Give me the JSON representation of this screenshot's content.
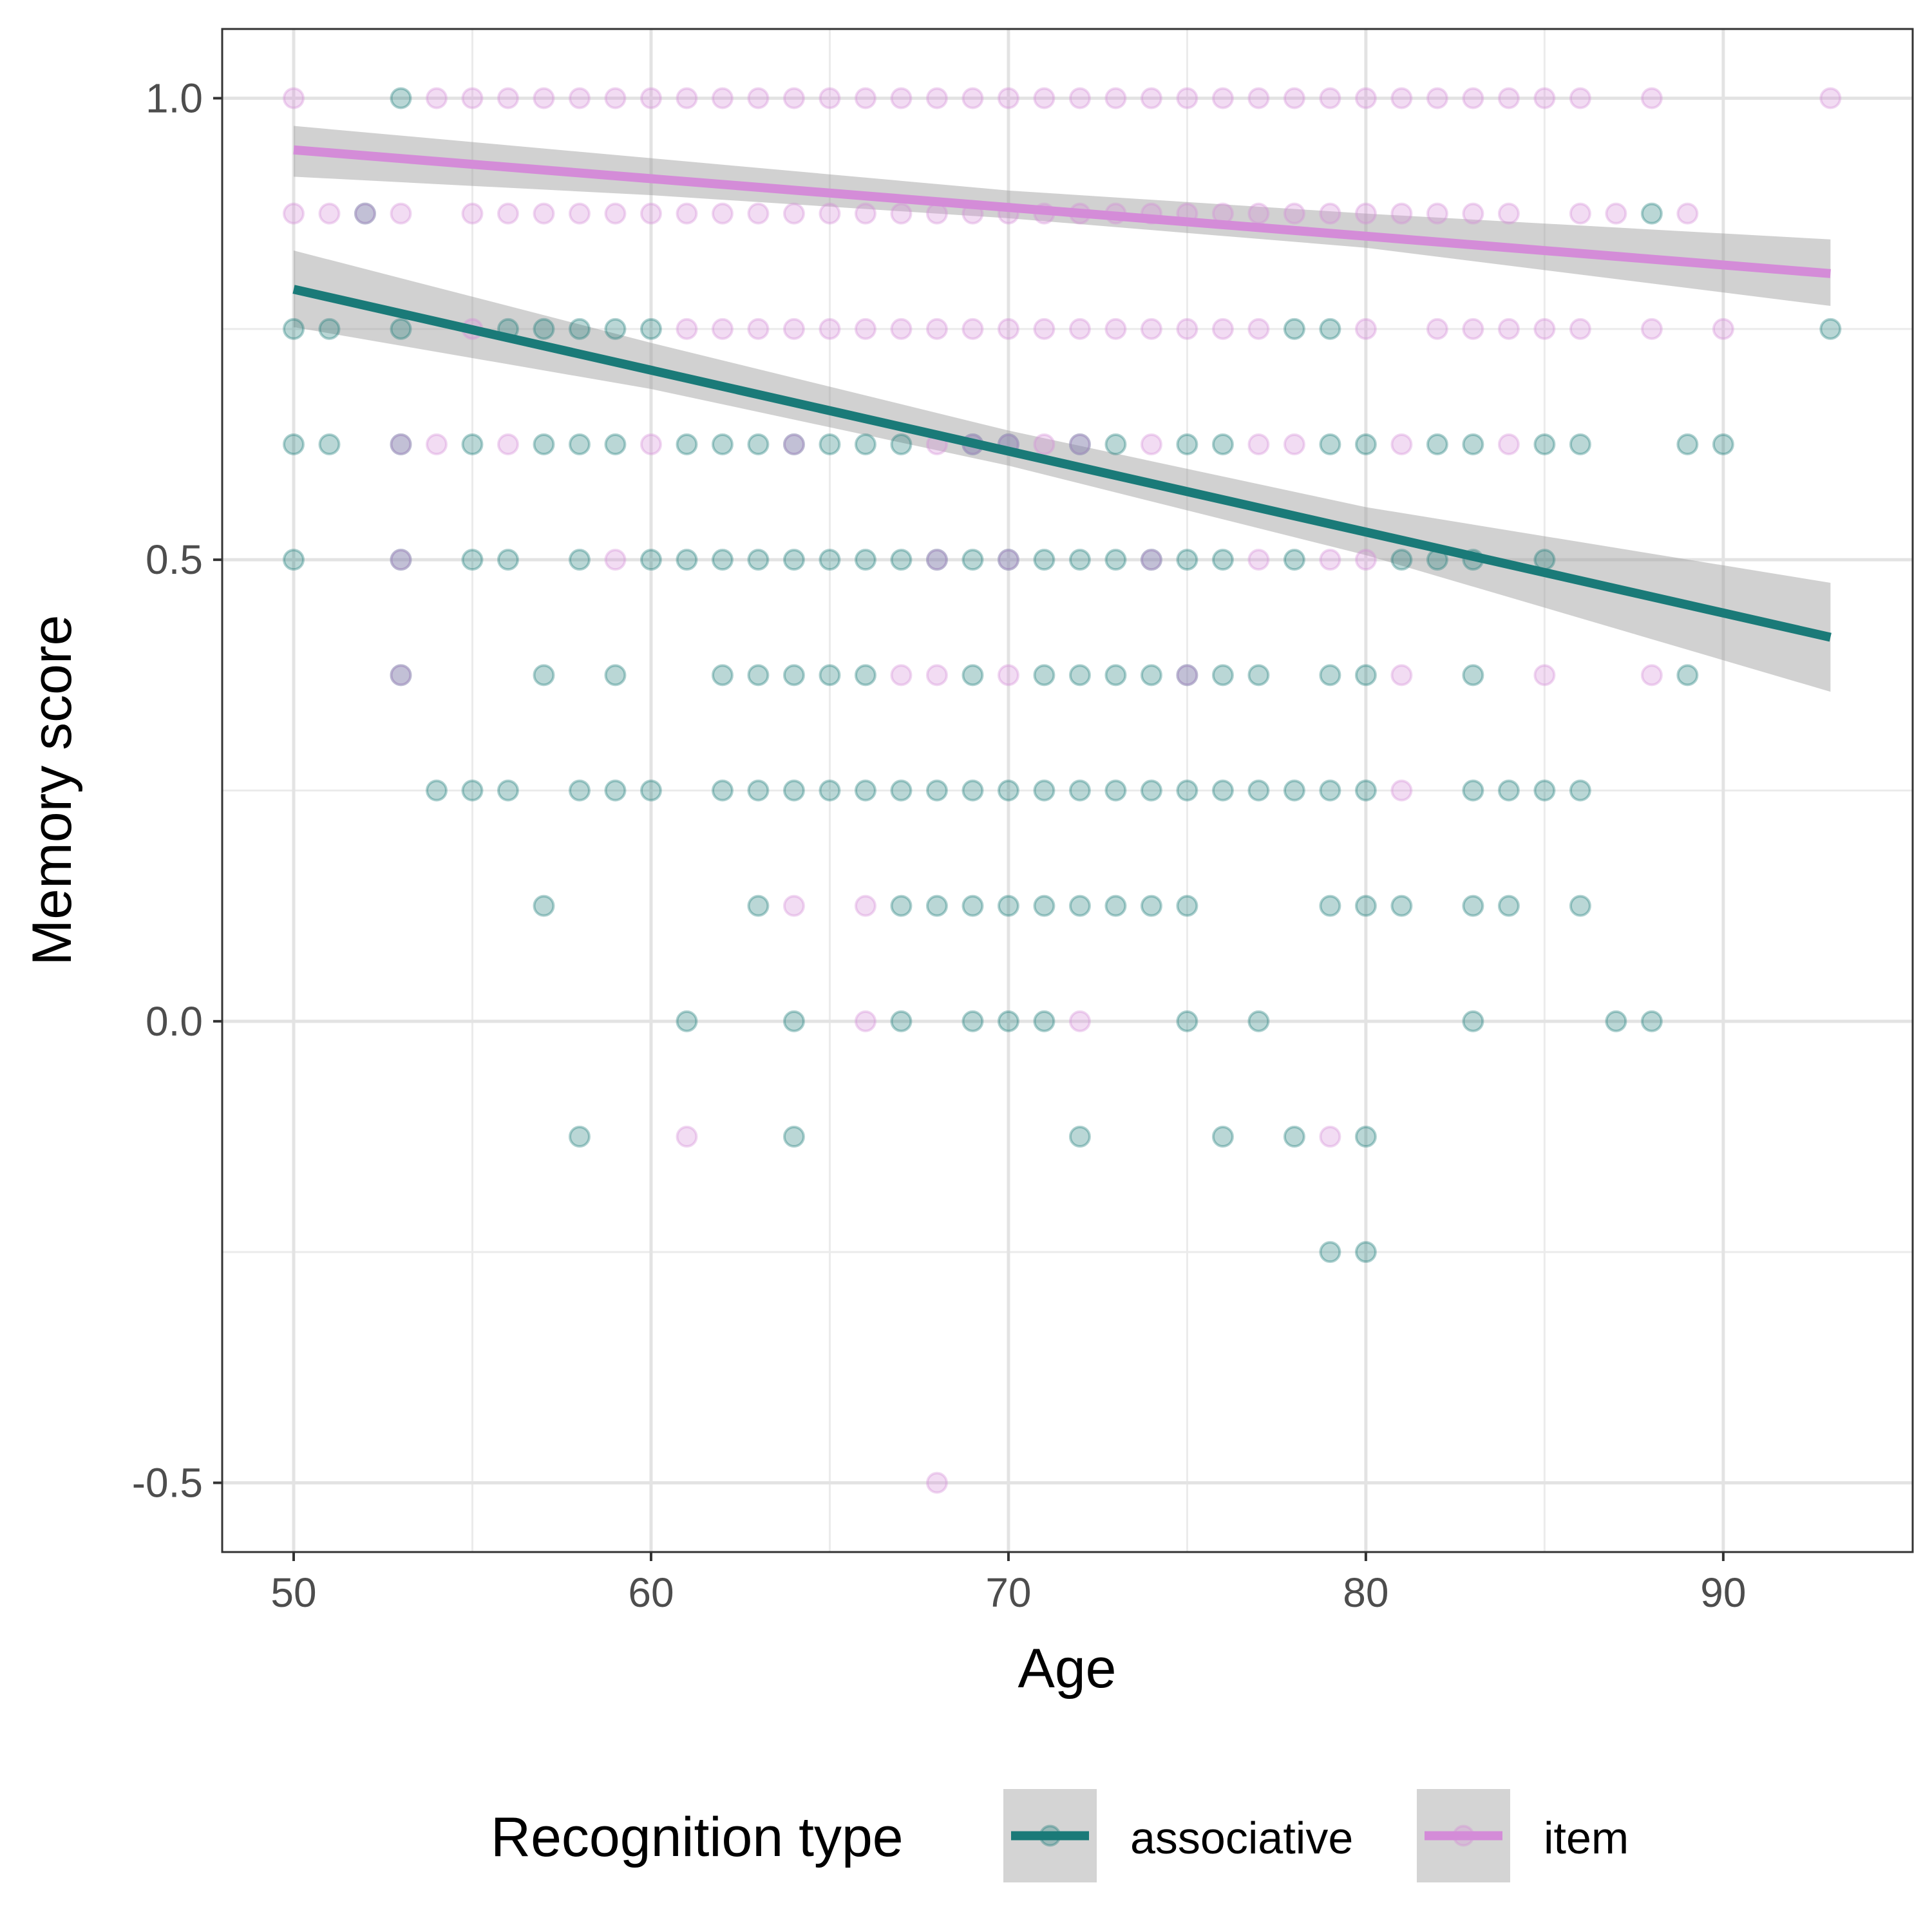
{
  "chart_data": {
    "type": "scatter",
    "title": "",
    "xlabel": "Age",
    "ylabel": "Memory score",
    "xlim": [
      48,
      95.3
    ],
    "ylim": [
      -0.575,
      1.075
    ],
    "x_major_ticks": [
      50,
      60,
      70,
      80,
      90
    ],
    "x_tick_labels": [
      "50",
      "60",
      "70",
      "80",
      "90"
    ],
    "x_minor_ticks": [
      55,
      65,
      75,
      85
    ],
    "y_major_ticks": [
      -0.5,
      0.0,
      0.5,
      1.0
    ],
    "y_tick_labels": [
      "-0.5",
      "0.0",
      "0.5",
      "1.0"
    ],
    "y_minor_ticks": [
      -0.25,
      0.25,
      0.75
    ],
    "grid": true,
    "legend": {
      "title": "Recognition type",
      "position": "bottom",
      "entries": [
        "associative",
        "item"
      ]
    },
    "series": [
      {
        "name": "associative",
        "color": "#1a7a78",
        "point_alpha": 0.3,
        "regression": {
          "x": [
            50,
            93
          ],
          "y": [
            0.793,
            0.416
          ]
        },
        "ci_upper": [
          [
            50,
            0.835
          ],
          [
            60,
            0.735
          ],
          [
            70,
            0.64
          ],
          [
            80,
            0.557
          ],
          [
            93,
            0.475
          ]
        ],
        "ci_lower": [
          [
            50,
            0.752
          ],
          [
            60,
            0.685
          ],
          [
            70,
            0.602
          ],
          [
            80,
            0.505
          ],
          [
            93,
            0.357
          ]
        ],
        "points": [
          [
            50,
            0.75
          ],
          [
            50,
            0.625
          ],
          [
            50,
            0.5
          ],
          [
            51,
            0.75
          ],
          [
            51,
            0.625
          ],
          [
            52,
            0.875
          ],
          [
            53,
            1.0
          ],
          [
            53,
            0.75
          ],
          [
            53,
            0.625
          ],
          [
            53,
            0.5
          ],
          [
            53,
            0.375
          ],
          [
            54,
            0.25
          ],
          [
            55,
            0.625
          ],
          [
            55,
            0.5
          ],
          [
            55,
            0.25
          ],
          [
            56,
            0.75
          ],
          [
            56,
            0.5
          ],
          [
            56,
            0.25
          ],
          [
            57,
            0.75
          ],
          [
            57,
            0.625
          ],
          [
            57,
            0.375
          ],
          [
            57,
            0.125
          ],
          [
            58,
            0.75
          ],
          [
            58,
            0.625
          ],
          [
            58,
            0.5
          ],
          [
            58,
            0.25
          ],
          [
            58,
            -0.125
          ],
          [
            59,
            0.75
          ],
          [
            59,
            0.625
          ],
          [
            59,
            0.375
          ],
          [
            59,
            0.25
          ],
          [
            60,
            0.75
          ],
          [
            60,
            0.5
          ],
          [
            60,
            0.25
          ],
          [
            61,
            0.625
          ],
          [
            61,
            0.5
          ],
          [
            61,
            0.0
          ],
          [
            62,
            0.625
          ],
          [
            62,
            0.5
          ],
          [
            62,
            0.375
          ],
          [
            62,
            0.25
          ],
          [
            63,
            0.625
          ],
          [
            63,
            0.5
          ],
          [
            63,
            0.375
          ],
          [
            63,
            0.25
          ],
          [
            63,
            0.125
          ],
          [
            64,
            0.625
          ],
          [
            64,
            0.5
          ],
          [
            64,
            0.375
          ],
          [
            64,
            0.25
          ],
          [
            64,
            0.0
          ],
          [
            64,
            -0.125
          ],
          [
            65,
            0.625
          ],
          [
            65,
            0.5
          ],
          [
            65,
            0.375
          ],
          [
            65,
            0.25
          ],
          [
            66,
            0.625
          ],
          [
            66,
            0.5
          ],
          [
            66,
            0.375
          ],
          [
            66,
            0.25
          ],
          [
            67,
            0.625
          ],
          [
            67,
            0.5
          ],
          [
            67,
            0.25
          ],
          [
            67,
            0.125
          ],
          [
            67,
            0.0
          ],
          [
            68,
            0.5
          ],
          [
            68,
            0.25
          ],
          [
            68,
            0.125
          ],
          [
            69,
            0.625
          ],
          [
            69,
            0.5
          ],
          [
            69,
            0.375
          ],
          [
            69,
            0.25
          ],
          [
            69,
            0.125
          ],
          [
            69,
            0.0
          ],
          [
            70,
            0.625
          ],
          [
            70,
            0.5
          ],
          [
            70,
            0.25
          ],
          [
            70,
            0.125
          ],
          [
            70,
            0.0
          ],
          [
            71,
            0.5
          ],
          [
            71,
            0.375
          ],
          [
            71,
            0.25
          ],
          [
            71,
            0.125
          ],
          [
            71,
            0.0
          ],
          [
            72,
            0.625
          ],
          [
            72,
            0.5
          ],
          [
            72,
            0.375
          ],
          [
            72,
            0.25
          ],
          [
            72,
            0.125
          ],
          [
            72,
            -0.125
          ],
          [
            73,
            0.625
          ],
          [
            73,
            0.5
          ],
          [
            73,
            0.375
          ],
          [
            73,
            0.25
          ],
          [
            73,
            0.125
          ],
          [
            74,
            0.5
          ],
          [
            74,
            0.375
          ],
          [
            74,
            0.25
          ],
          [
            74,
            0.125
          ],
          [
            75,
            0.625
          ],
          [
            75,
            0.5
          ],
          [
            75,
            0.375
          ],
          [
            75,
            0.25
          ],
          [
            75,
            0.125
          ],
          [
            75,
            0.0
          ],
          [
            76,
            0.625
          ],
          [
            76,
            0.5
          ],
          [
            76,
            0.375
          ],
          [
            76,
            0.25
          ],
          [
            76,
            -0.125
          ],
          [
            77,
            0.375
          ],
          [
            77,
            0.25
          ],
          [
            77,
            0.0
          ],
          [
            78,
            0.75
          ],
          [
            78,
            0.5
          ],
          [
            78,
            0.25
          ],
          [
            78,
            -0.125
          ],
          [
            79,
            0.75
          ],
          [
            79,
            0.625
          ],
          [
            79,
            0.375
          ],
          [
            79,
            0.25
          ],
          [
            79,
            0.125
          ],
          [
            79,
            -0.25
          ],
          [
            80,
            0.625
          ],
          [
            80,
            0.375
          ],
          [
            80,
            0.25
          ],
          [
            80,
            0.125
          ],
          [
            80,
            -0.125
          ],
          [
            80,
            -0.25
          ],
          [
            81,
            0.5
          ],
          [
            81,
            0.125
          ],
          [
            82,
            0.625
          ],
          [
            82,
            0.5
          ],
          [
            83,
            0.625
          ],
          [
            83,
            0.5
          ],
          [
            83,
            0.375
          ],
          [
            83,
            0.25
          ],
          [
            83,
            0.125
          ],
          [
            83,
            0.0
          ],
          [
            84,
            0.25
          ],
          [
            84,
            0.125
          ],
          [
            85,
            0.625
          ],
          [
            85,
            0.5
          ],
          [
            85,
            0.25
          ],
          [
            86,
            0.625
          ],
          [
            86,
            0.25
          ],
          [
            86,
            0.125
          ],
          [
            87,
            0.0
          ],
          [
            88,
            0.875
          ],
          [
            88,
            0.0
          ],
          [
            89,
            0.625
          ],
          [
            89,
            0.375
          ],
          [
            90,
            0.625
          ],
          [
            93,
            0.75
          ]
        ]
      },
      {
        "name": "item",
        "color": "#d48cd8",
        "point_alpha": 0.3,
        "regression": {
          "x": [
            50,
            93
          ],
          "y": [
            0.944,
            0.81
          ]
        },
        "ci_upper": [
          [
            50,
            0.97
          ],
          [
            60,
            0.935
          ],
          [
            70,
            0.9
          ],
          [
            80,
            0.875
          ],
          [
            93,
            0.847
          ]
        ],
        "ci_lower": [
          [
            50,
            0.915
          ],
          [
            60,
            0.895
          ],
          [
            70,
            0.87
          ],
          [
            80,
            0.838
          ],
          [
            93,
            0.775
          ]
        ],
        "points": [
          [
            50,
            1.0
          ],
          [
            50,
            0.875
          ],
          [
            51,
            0.875
          ],
          [
            52,
            0.875
          ],
          [
            53,
            0.875
          ],
          [
            53,
            0.625
          ],
          [
            53,
            0.5
          ],
          [
            53,
            0.375
          ],
          [
            54,
            1.0
          ],
          [
            54,
            0.625
          ],
          [
            55,
            1.0
          ],
          [
            55,
            0.875
          ],
          [
            55,
            0.75
          ],
          [
            56,
            1.0
          ],
          [
            56,
            0.875
          ],
          [
            56,
            0.625
          ],
          [
            57,
            1.0
          ],
          [
            57,
            0.875
          ],
          [
            58,
            1.0
          ],
          [
            58,
            0.875
          ],
          [
            59,
            1.0
          ],
          [
            59,
            0.875
          ],
          [
            59,
            0.5
          ],
          [
            60,
            1.0
          ],
          [
            60,
            0.875
          ],
          [
            60,
            0.625
          ],
          [
            61,
            1.0
          ],
          [
            61,
            0.875
          ],
          [
            61,
            0.75
          ],
          [
            61,
            -0.125
          ],
          [
            62,
            1.0
          ],
          [
            62,
            0.875
          ],
          [
            62,
            0.75
          ],
          [
            63,
            1.0
          ],
          [
            63,
            0.875
          ],
          [
            63,
            0.75
          ],
          [
            64,
            1.0
          ],
          [
            64,
            0.875
          ],
          [
            64,
            0.75
          ],
          [
            64,
            0.625
          ],
          [
            64,
            0.125
          ],
          [
            65,
            1.0
          ],
          [
            65,
            0.875
          ],
          [
            65,
            0.75
          ],
          [
            66,
            1.0
          ],
          [
            66,
            0.875
          ],
          [
            66,
            0.75
          ],
          [
            66,
            0.125
          ],
          [
            66,
            0.0
          ],
          [
            67,
            1.0
          ],
          [
            67,
            0.875
          ],
          [
            67,
            0.75
          ],
          [
            67,
            0.375
          ],
          [
            68,
            1.0
          ],
          [
            68,
            0.875
          ],
          [
            68,
            0.75
          ],
          [
            68,
            0.625
          ],
          [
            68,
            0.5
          ],
          [
            68,
            0.375
          ],
          [
            68,
            -0.5
          ],
          [
            69,
            1.0
          ],
          [
            69,
            0.875
          ],
          [
            69,
            0.75
          ],
          [
            69,
            0.625
          ],
          [
            70,
            1.0
          ],
          [
            70,
            0.875
          ],
          [
            70,
            0.75
          ],
          [
            70,
            0.625
          ],
          [
            70,
            0.5
          ],
          [
            70,
            0.375
          ],
          [
            71,
            1.0
          ],
          [
            71,
            0.875
          ],
          [
            71,
            0.75
          ],
          [
            71,
            0.625
          ],
          [
            72,
            1.0
          ],
          [
            72,
            0.875
          ],
          [
            72,
            0.75
          ],
          [
            72,
            0.625
          ],
          [
            72,
            0.0
          ],
          [
            73,
            1.0
          ],
          [
            73,
            0.875
          ],
          [
            73,
            0.75
          ],
          [
            74,
            1.0
          ],
          [
            74,
            0.875
          ],
          [
            74,
            0.75
          ],
          [
            74,
            0.625
          ],
          [
            74,
            0.5
          ],
          [
            75,
            1.0
          ],
          [
            75,
            0.875
          ],
          [
            75,
            0.75
          ],
          [
            75,
            0.375
          ],
          [
            76,
            1.0
          ],
          [
            76,
            0.875
          ],
          [
            76,
            0.75
          ],
          [
            77,
            1.0
          ],
          [
            77,
            0.875
          ],
          [
            77,
            0.75
          ],
          [
            77,
            0.625
          ],
          [
            77,
            0.5
          ],
          [
            78,
            1.0
          ],
          [
            78,
            0.875
          ],
          [
            78,
            0.625
          ],
          [
            79,
            1.0
          ],
          [
            79,
            0.875
          ],
          [
            79,
            0.5
          ],
          [
            79,
            -0.125
          ],
          [
            80,
            1.0
          ],
          [
            80,
            0.875
          ],
          [
            80,
            0.75
          ],
          [
            80,
            0.5
          ],
          [
            81,
            1.0
          ],
          [
            81,
            0.875
          ],
          [
            81,
            0.625
          ],
          [
            81,
            0.375
          ],
          [
            81,
            0.25
          ],
          [
            82,
            1.0
          ],
          [
            82,
            0.875
          ],
          [
            82,
            0.75
          ],
          [
            83,
            1.0
          ],
          [
            83,
            0.875
          ],
          [
            83,
            0.75
          ],
          [
            84,
            1.0
          ],
          [
            84,
            0.875
          ],
          [
            84,
            0.75
          ],
          [
            84,
            0.625
          ],
          [
            85,
            1.0
          ],
          [
            85,
            0.75
          ],
          [
            85,
            0.375
          ],
          [
            86,
            1.0
          ],
          [
            86,
            0.875
          ],
          [
            86,
            0.75
          ],
          [
            87,
            0.875
          ],
          [
            88,
            1.0
          ],
          [
            88,
            0.75
          ],
          [
            88,
            0.375
          ],
          [
            89,
            0.875
          ],
          [
            90,
            0.75
          ],
          [
            93,
            1.0
          ]
        ]
      }
    ],
    "band_color": "#999999",
    "band_alpha": 0.45
  }
}
